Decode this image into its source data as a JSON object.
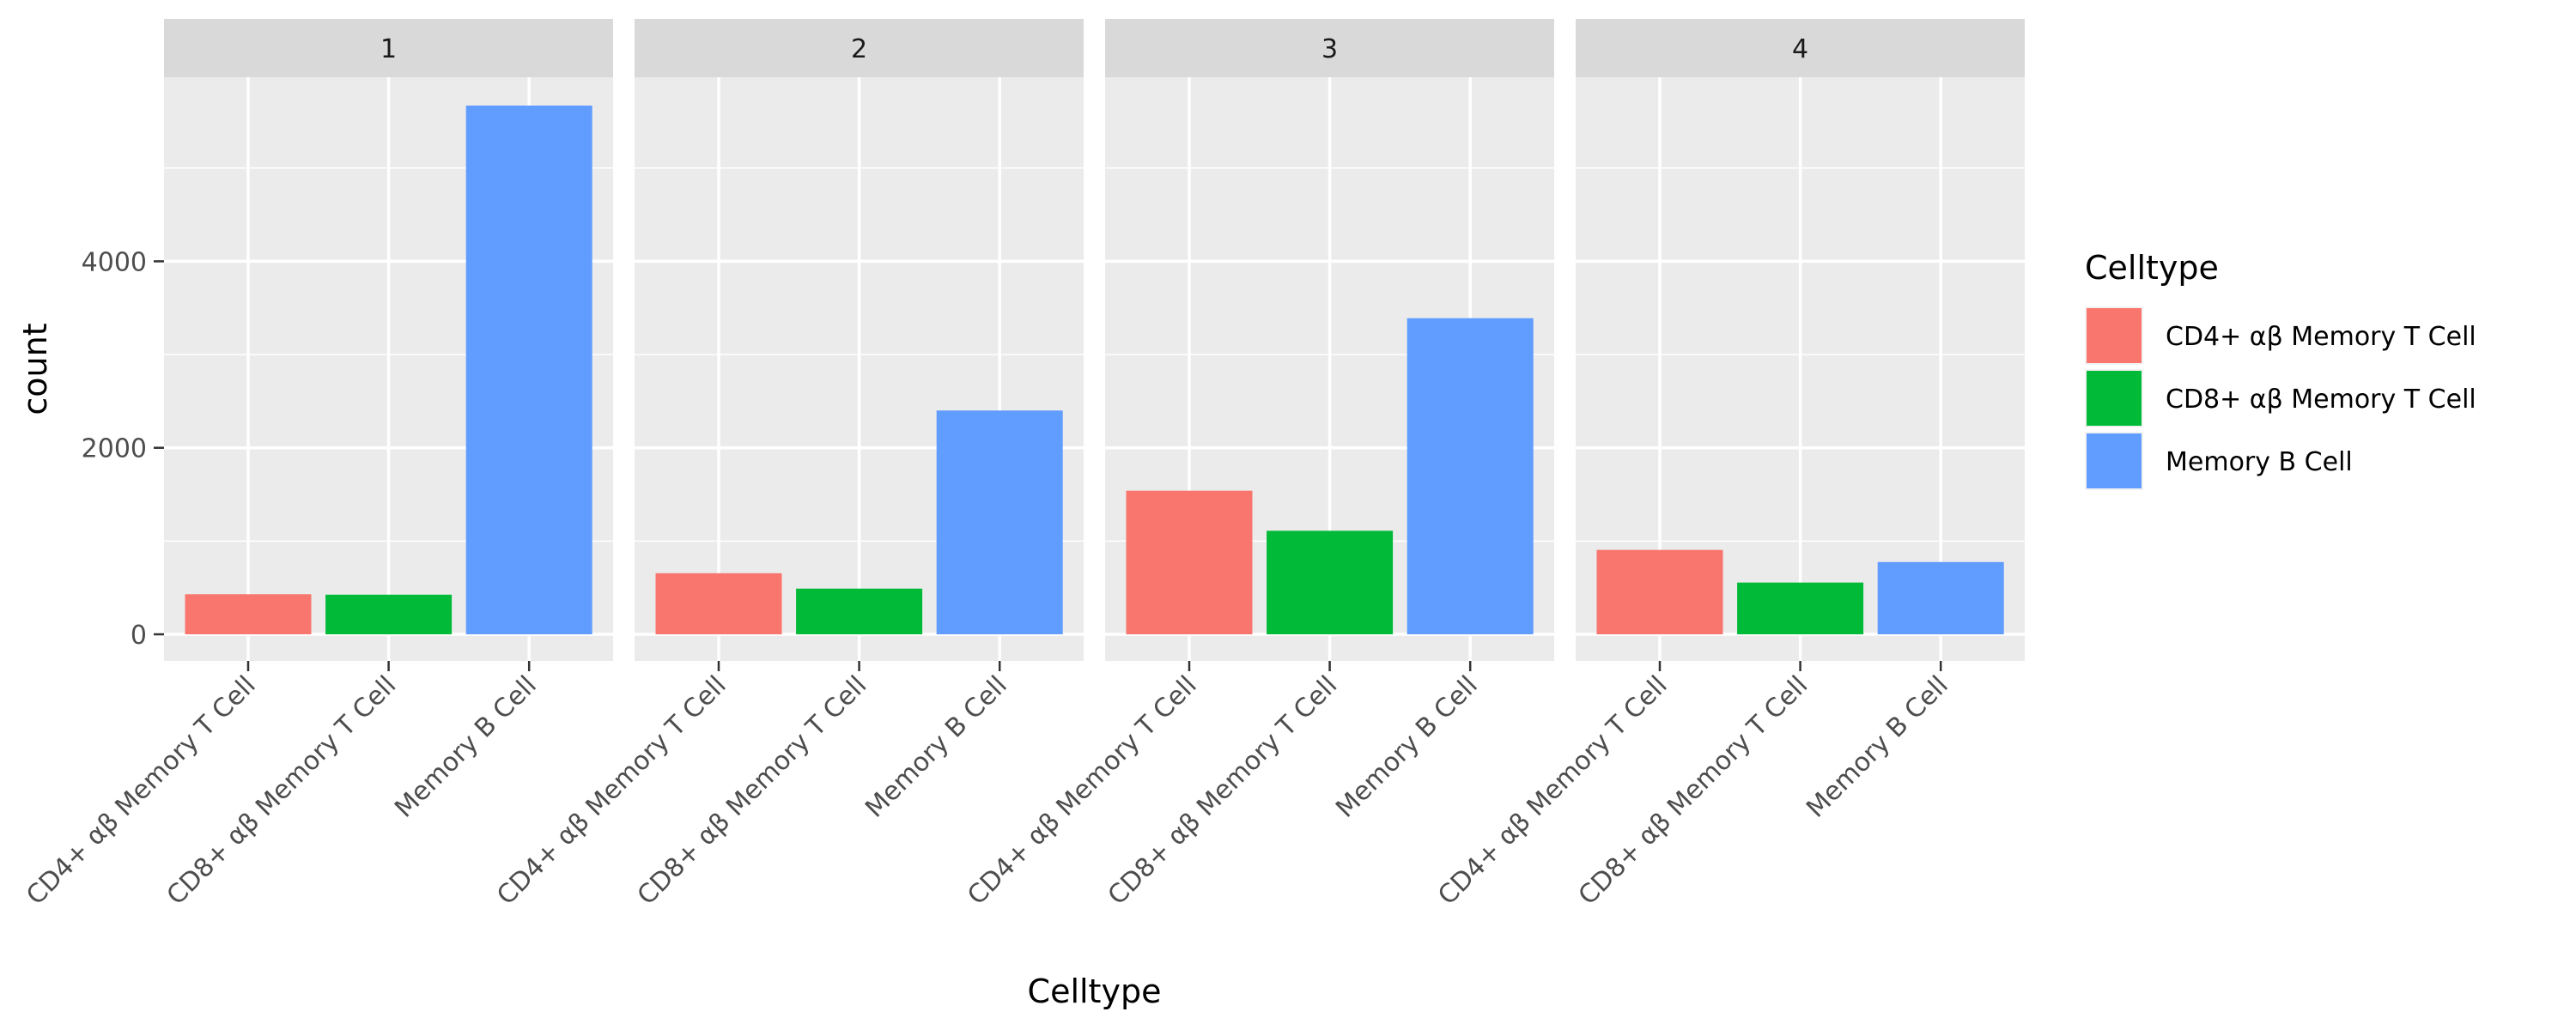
{
  "chart_data": {
    "type": "bar",
    "facets": [
      "1",
      "2",
      "3",
      "4"
    ],
    "categories": [
      "CD4+ αβ Memory T Cell",
      "CD8+ αβ Memory T Cell",
      "Memory B Cell"
    ],
    "values": [
      [
        430,
        425,
        5670
      ],
      [
        655,
        490,
        2400
      ],
      [
        1540,
        1110,
        3390
      ],
      [
        905,
        555,
        775
      ]
    ],
    "xlabel": "Celltype",
    "ylabel": "count",
    "ylim": [
      0,
      5670
    ],
    "yticks": [
      0,
      2000,
      4000
    ],
    "legend": {
      "title": "Celltype",
      "position": "right",
      "entries": [
        "CD4+ αβ Memory T Cell",
        "CD8+ αβ Memory T Cell",
        "Memory B Cell"
      ]
    },
    "colors": [
      "#F8766D",
      "#00BA38",
      "#619CFF"
    ],
    "grid": true
  }
}
